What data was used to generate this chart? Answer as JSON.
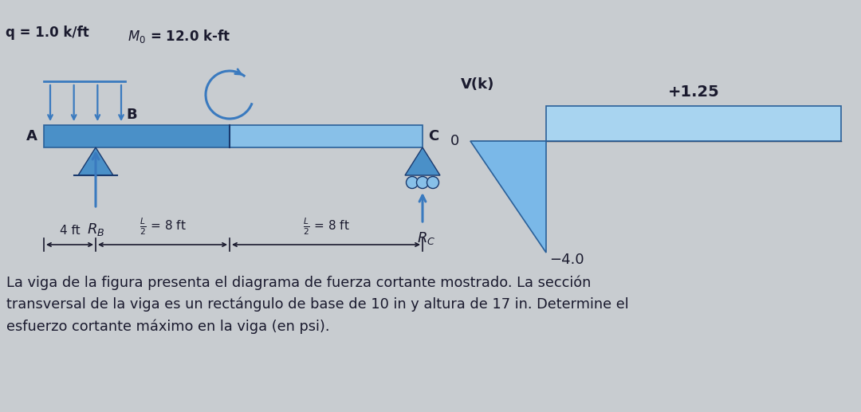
{
  "bg_color": "#c8ccd0",
  "beam_color": "#6ab0e0",
  "beam_color_dark": "#4a90c8",
  "arrow_color": "#3a7abf",
  "text_color": "#1a1a2e",
  "shear_neg_color": "#7ab8e8",
  "shear_pos_color": "#a8d4f0",
  "support_color": "#4a90c8",
  "label_q": "q = 1.0 k/ft",
  "label_M0": "$M_0$ = 12.0 k-ft",
  "vdiag_label": "V(k)",
  "vdiag_neg": "-4.0",
  "vdiag_pos": "+1.25",
  "text_paragraph": "La viga de la figura presenta el diagrama de fuerza cortante mostrado. La sección\ntransversal de la viga es un rectángulo de base de 10 in y altura de 17 in. Determine el\nesfuerzo cortante máximo en la viga (en psi)."
}
